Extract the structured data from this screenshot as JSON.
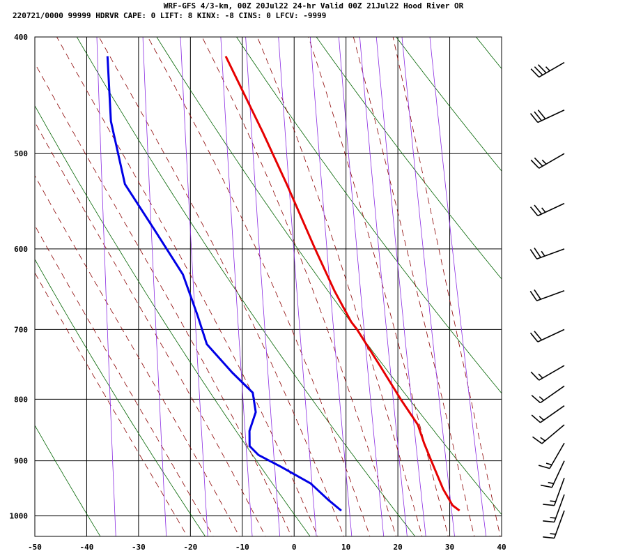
{
  "header": {
    "line1": "WRF-GFS 4/3-km, 00Z 20Jul22 24-hr Valid 00Z 21Jul22 Hood River OR",
    "line2": "220721/0000 99999  HDRVR   CAPE:     0 LIFT:     8 KINX:    -8 CINS:     0 LFCV: -9999"
  },
  "chart_data": {
    "type": "skew-t",
    "x_ticks": [
      -50,
      -40,
      -30,
      -20,
      -10,
      0,
      10,
      20,
      30,
      40
    ],
    "p_ticks": [
      400,
      500,
      600,
      700,
      800,
      900,
      1000
    ],
    "xlim": [
      -50,
      40
    ],
    "plim": [
      400,
      1040
    ],
    "grid": true,
    "temperature": {
      "color": "#e60000",
      "points": [
        [
          415,
          -18.6
        ],
        [
          480,
          -10.6
        ],
        [
          530,
          -5.4
        ],
        [
          600,
          0.8
        ],
        [
          650,
          5.0
        ],
        [
          690,
          8.6
        ],
        [
          700,
          9.8
        ],
        [
          750,
          14.6
        ],
        [
          800,
          19.0
        ],
        [
          840,
          22.6
        ],
        [
          870,
          24.0
        ],
        [
          900,
          25.6
        ],
        [
          950,
          28.2
        ],
        [
          980,
          30.2
        ],
        [
          990,
          31.6
        ]
      ]
    },
    "dewpoint": {
      "color": "#0000e6",
      "points": [
        [
          415,
          -41.4
        ],
        [
          470,
          -40.0
        ],
        [
          530,
          -36.6
        ],
        [
          580,
          -30.2
        ],
        [
          630,
          -24.4
        ],
        [
          680,
          -21.2
        ],
        [
          720,
          -19.0
        ],
        [
          760,
          -13.8
        ],
        [
          790,
          -9.6
        ],
        [
          820,
          -8.8
        ],
        [
          850,
          -9.8
        ],
        [
          875,
          -9.6
        ],
        [
          890,
          -7.8
        ],
        [
          910,
          -3.4
        ],
        [
          940,
          2.6
        ],
        [
          970,
          6.2
        ],
        [
          990,
          8.8
        ]
      ]
    },
    "wind_barbs": [
      {
        "p": 420,
        "direction": 240,
        "speed_kt": 35
      },
      {
        "p": 460,
        "direction": 245,
        "speed_kt": 30
      },
      {
        "p": 500,
        "direction": 240,
        "speed_kt": 25
      },
      {
        "p": 550,
        "direction": 245,
        "speed_kt": 25
      },
      {
        "p": 600,
        "direction": 250,
        "speed_kt": 25
      },
      {
        "p": 650,
        "direction": 250,
        "speed_kt": 20
      },
      {
        "p": 700,
        "direction": 245,
        "speed_kt": 20
      },
      {
        "p": 750,
        "direction": 240,
        "speed_kt": 15
      },
      {
        "p": 780,
        "direction": 235,
        "speed_kt": 15
      },
      {
        "p": 810,
        "direction": 235,
        "speed_kt": 15
      },
      {
        "p": 840,
        "direction": 230,
        "speed_kt": 15
      },
      {
        "p": 870,
        "direction": 210,
        "speed_kt": 15
      },
      {
        "p": 900,
        "direction": 205,
        "speed_kt": 15
      },
      {
        "p": 930,
        "direction": 200,
        "speed_kt": 15
      },
      {
        "p": 960,
        "direction": 200,
        "speed_kt": 15
      },
      {
        "p": 990,
        "direction": 200,
        "speed_kt": 15
      }
    ],
    "colors": {
      "isobar": "#000000",
      "isotherm": "#000000",
      "dry_adiabat": "#006400",
      "moist_adiabat": "#8b0000",
      "mixing_ratio": "#8a2be2",
      "barb": "#000000"
    }
  }
}
